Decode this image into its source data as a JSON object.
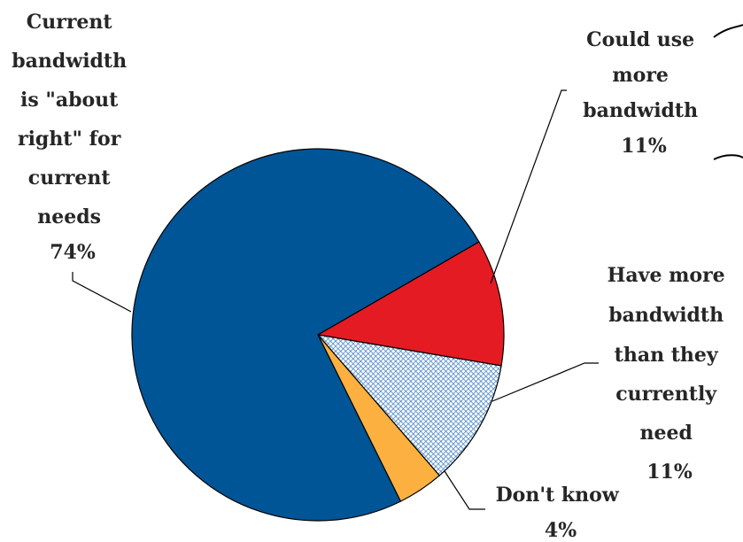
{
  "chart_data": {
    "type": "pie",
    "slices": [
      {
        "name": "Could use more bandwidth",
        "value": 11,
        "label_lines": [
          "Could use",
          "more",
          "bandwidth",
          "11%"
        ],
        "color": "#e41b23",
        "pattern": "solid"
      },
      {
        "name": "Have more bandwidth than they currently need",
        "value": 11,
        "label_lines": [
          "Have more",
          "bandwidth",
          "than they",
          "currently",
          "need",
          "11%"
        ],
        "color": "#9dbde6",
        "pattern": "crosshatch"
      },
      {
        "name": "Don't know",
        "value": 4,
        "label_lines": [
          "Don't know",
          "4%"
        ],
        "color": "#fbb040",
        "pattern": "solid"
      },
      {
        "name": "Current bandwidth is \"about right\" for current needs",
        "value": 74,
        "label_lines": [
          "Current",
          "bandwidth",
          "is \"about",
          "right\" for",
          "current",
          "needs",
          "74%"
        ],
        "color": "#005596",
        "pattern": "solid"
      }
    ],
    "start_angle_deg": 60,
    "direction": "clockwise",
    "legend": "none",
    "title": ""
  }
}
